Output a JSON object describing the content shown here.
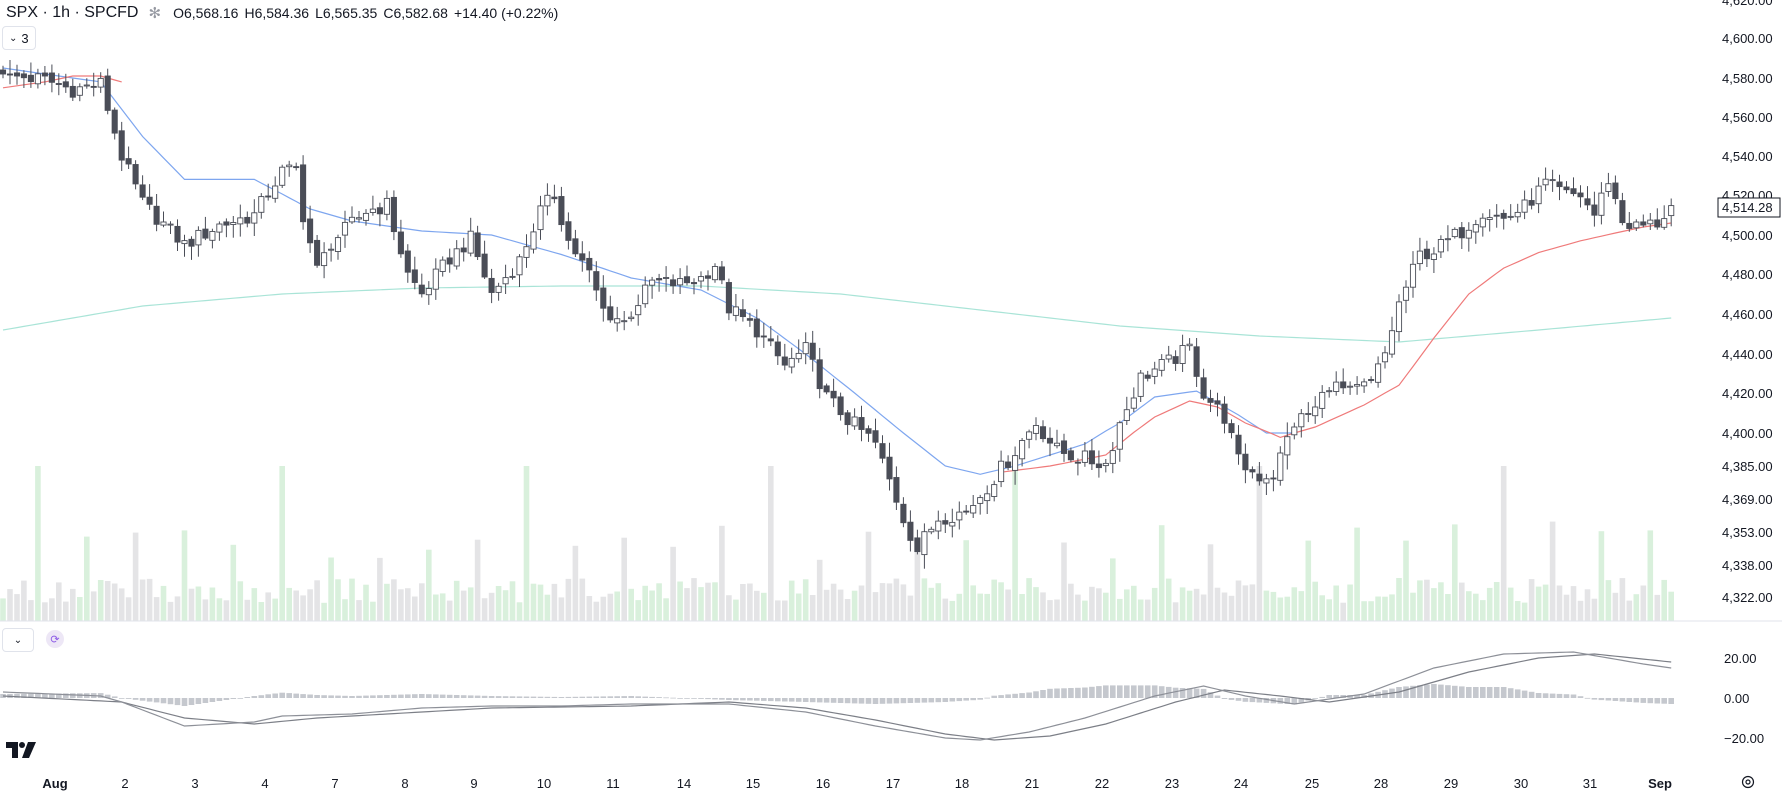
{
  "legend": {
    "symbol": "SPX · 1h · SPCFD",
    "open": "O6,568.16",
    "high": "H6,584.36",
    "low": "L6,565.35",
    "close": "C6,582.68",
    "change": "+14.40 (+0.22%)"
  },
  "indicators_toggle": {
    "count": "3"
  },
  "price_tag": "4,514.28",
  "colors": {
    "candle_down": "#4a4d57",
    "candle_up": "#ffffff",
    "candle_border": "#4a4d57",
    "ma_fast": "#7ea6ef",
    "ma_red": "#ef7a7a",
    "ma_slow": "#a9e4d7",
    "volume_up": "#d9f0dc",
    "volume_down": "#e4e4e6",
    "macd_hist": "#c5c8ce",
    "macd_line": "#7c7f87"
  },
  "chart_data": [
    {
      "type": "candlestick",
      "price_axis_ticks": [
        "4,620.00",
        "4,600.00",
        "4,580.00",
        "4,560.00",
        "4,540.00",
        "4,520.00",
        "4,500.00",
        "4,480.00",
        "4,460.00",
        "4,440.00",
        "4,420.00",
        "4,400.00",
        "4,385.00",
        "4,369.00",
        "4,353.00",
        "4,338.00",
        "4,322.00"
      ],
      "price_axis_values": [
        4620,
        4600,
        4580,
        4560,
        4540,
        4520,
        4500,
        4480,
        4460,
        4440,
        4420,
        4400,
        4385,
        4369,
        4353,
        4338,
        4322
      ],
      "x_tick_labels": [
        "Aug",
        "2",
        "3",
        "4",
        "7",
        "8",
        "9",
        "10",
        "11",
        "14",
        "15",
        "16",
        "17",
        "18",
        "21",
        "22",
        "23",
        "24",
        "25",
        "28",
        "29",
        "30",
        "31",
        "Sep"
      ],
      "anchors": [
        [
          0,
          4582
        ],
        [
          6,
          4579
        ],
        [
          10,
          4574
        ],
        [
          14,
          4577
        ],
        [
          17,
          4540
        ],
        [
          20,
          4516
        ],
        [
          26,
          4495
        ],
        [
          31,
          4505
        ],
        [
          36,
          4510
        ],
        [
          40,
          4532
        ],
        [
          42,
          4533
        ],
        [
          43,
          4510
        ],
        [
          45,
          4482
        ],
        [
          47,
          4496
        ],
        [
          52,
          4512
        ],
        [
          55,
          4515
        ],
        [
          58,
          4480
        ],
        [
          60,
          4470
        ],
        [
          64,
          4488
        ],
        [
          67,
          4498
        ],
        [
          70,
          4470
        ],
        [
          74,
          4487
        ],
        [
          77,
          4512
        ],
        [
          79,
          4520
        ],
        [
          81,
          4497
        ],
        [
          84,
          4480
        ],
        [
          86,
          4462
        ],
        [
          89,
          4456
        ],
        [
          93,
          4476
        ],
        [
          97,
          4475
        ],
        [
          100,
          4478
        ],
        [
          102,
          4485
        ],
        [
          104,
          4463
        ],
        [
          108,
          4452
        ],
        [
          112,
          4434
        ],
        [
          115,
          4442
        ],
        [
          118,
          4418
        ],
        [
          121,
          4407
        ],
        [
          125,
          4395
        ],
        [
          127,
          4378
        ],
        [
          129,
          4360
        ],
        [
          131,
          4345
        ],
        [
          134,
          4360
        ],
        [
          138,
          4363
        ],
        [
          141,
          4375
        ],
        [
          145,
          4392
        ],
        [
          148,
          4405
        ],
        [
          151,
          4392
        ],
        [
          155,
          4388
        ],
        [
          158,
          4386
        ],
        [
          160,
          4405
        ],
        [
          163,
          4428
        ],
        [
          168,
          4438
        ],
        [
          170,
          4443
        ],
        [
          172,
          4420
        ],
        [
          175,
          4408
        ],
        [
          177,
          4387
        ],
        [
          180,
          4380
        ],
        [
          182,
          4381
        ],
        [
          185,
          4405
        ],
        [
          188,
          4412
        ],
        [
          190,
          4425
        ],
        [
          193,
          4420
        ],
        [
          196,
          4425
        ],
        [
          198,
          4440
        ],
        [
          200,
          4465
        ],
        [
          203,
          4490
        ],
        [
          205,
          4492
        ],
        [
          207,
          4497
        ],
        [
          209,
          4502
        ],
        [
          212,
          4512
        ],
        [
          215,
          4508
        ],
        [
          218,
          4514
        ],
        [
          221,
          4526
        ],
        [
          224,
          4520
        ],
        [
          226,
          4520
        ],
        [
          228,
          4510
        ],
        [
          230,
          4528
        ],
        [
          232,
          4507
        ],
        [
          234,
          4504
        ],
        [
          237,
          4506
        ],
        [
          239,
          4514
        ]
      ],
      "moving_average_anchors": {
        "blue": [
          [
            0,
            4585
          ],
          [
            14,
            4578
          ],
          [
            20,
            4550
          ],
          [
            26,
            4528
          ],
          [
            36,
            4528
          ],
          [
            44,
            4513
          ],
          [
            50,
            4507
          ],
          [
            60,
            4502
          ],
          [
            70,
            4500
          ],
          [
            80,
            4490
          ],
          [
            90,
            4478
          ],
          [
            100,
            4472
          ],
          [
            108,
            4458
          ],
          [
            115,
            4440
          ],
          [
            122,
            4420
          ],
          [
            129,
            4400
          ],
          [
            135,
            4385
          ],
          [
            140,
            4381
          ],
          [
            145,
            4385
          ],
          [
            150,
            4390
          ],
          [
            155,
            4395
          ],
          [
            160,
            4405
          ],
          [
            165,
            4418
          ],
          [
            171,
            4421
          ],
          [
            177,
            4409
          ],
          [
            181,
            4400
          ],
          [
            185,
            4400
          ]
        ],
        "red": [
          [
            0,
            4575
          ],
          [
            6,
            4578
          ],
          [
            10,
            4581
          ],
          [
            14,
            4581
          ],
          [
            17,
            4578
          ],
          [
            36,
            4534
          ],
          [
            40,
            4530
          ],
          [
            143,
            4382
          ],
          [
            150,
            4385
          ],
          [
            158,
            4390
          ],
          [
            165,
            4408
          ],
          [
            170,
            4416
          ],
          [
            174,
            4413
          ],
          [
            178,
            4405
          ],
          [
            183,
            4398
          ],
          [
            188,
            4403
          ],
          [
            195,
            4414
          ],
          [
            200,
            4424
          ],
          [
            205,
            4448
          ],
          [
            210,
            4470
          ],
          [
            215,
            4483
          ],
          [
            220,
            4491
          ],
          [
            226,
            4497
          ],
          [
            231,
            4501
          ],
          [
            235,
            4504
          ],
          [
            239,
            4506
          ]
        ],
        "teal": [
          [
            0,
            4452
          ],
          [
            20,
            4464
          ],
          [
            40,
            4470
          ],
          [
            60,
            4473
          ],
          [
            80,
            4474
          ],
          [
            100,
            4474
          ],
          [
            120,
            4470
          ],
          [
            140,
            4462
          ],
          [
            160,
            4454
          ],
          [
            180,
            4449
          ],
          [
            200,
            4446
          ],
          [
            210,
            4449
          ],
          [
            220,
            4452
          ],
          [
            239,
            4458
          ]
        ]
      },
      "bar_count": 240
    },
    {
      "type": "macd",
      "axis_ticks": [
        "20.00",
        "0.00",
        "−20.00"
      ],
      "axis_values": [
        20,
        0,
        -20
      ],
      "macd_anchors": [
        [
          0,
          3
        ],
        [
          14,
          1
        ],
        [
          17,
          -2
        ],
        [
          26,
          -14
        ],
        [
          36,
          -12
        ],
        [
          40,
          -9
        ],
        [
          50,
          -8
        ],
        [
          60,
          -5
        ],
        [
          70,
          -4
        ],
        [
          80,
          -4
        ],
        [
          90,
          -3
        ],
        [
          104,
          -3
        ],
        [
          115,
          -7
        ],
        [
          125,
          -14
        ],
        [
          135,
          -20
        ],
        [
          140,
          -21
        ],
        [
          147,
          -17
        ],
        [
          155,
          -10
        ],
        [
          165,
          1
        ],
        [
          172,
          6
        ],
        [
          178,
          1
        ],
        [
          185,
          -3
        ],
        [
          195,
          2
        ],
        [
          205,
          15
        ],
        [
          215,
          22
        ],
        [
          225,
          23
        ],
        [
          235,
          17
        ],
        [
          239,
          15
        ]
      ],
      "signal_anchors": [
        [
          0,
          1
        ],
        [
          17,
          -2
        ],
        [
          26,
          -10
        ],
        [
          36,
          -13
        ],
        [
          45,
          -10
        ],
        [
          55,
          -8
        ],
        [
          70,
          -5
        ],
        [
          90,
          -4
        ],
        [
          104,
          -2
        ],
        [
          115,
          -5
        ],
        [
          125,
          -11
        ],
        [
          135,
          -18
        ],
        [
          142,
          -21
        ],
        [
          150,
          -19
        ],
        [
          158,
          -13
        ],
        [
          168,
          -2
        ],
        [
          175,
          4
        ],
        [
          183,
          1
        ],
        [
          190,
          -2
        ],
        [
          200,
          3
        ],
        [
          210,
          13
        ],
        [
          220,
          20
        ],
        [
          228,
          22
        ],
        [
          239,
          18
        ]
      ]
    }
  ]
}
